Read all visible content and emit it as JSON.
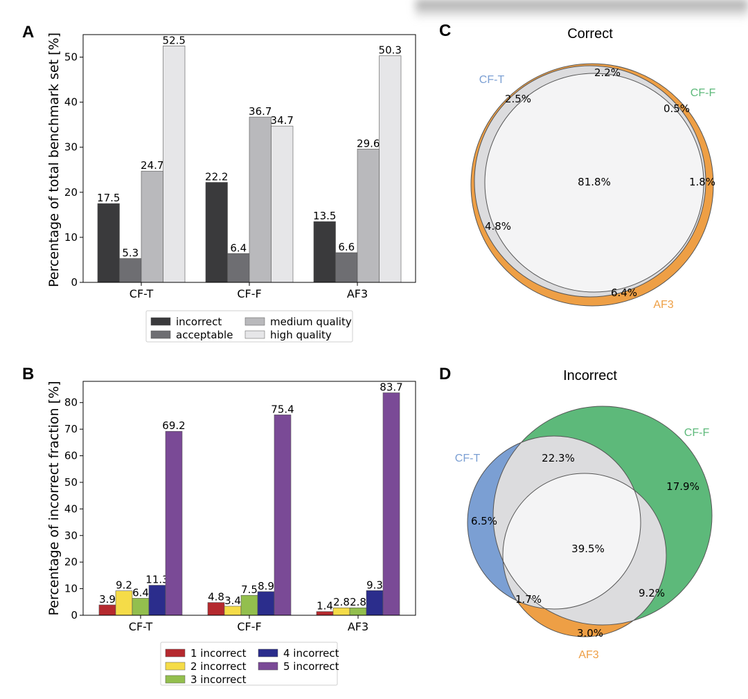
{
  "panels": {
    "A": "A",
    "B": "B",
    "C": "C",
    "D": "D"
  },
  "chart_data": [
    {
      "type": "bar",
      "panel": "A",
      "ylabel": "Percentage of total benchmark set [%]",
      "xlabel": "",
      "ylim": [
        0,
        55
      ],
      "yticks": [
        0,
        10,
        20,
        30,
        40,
        50
      ],
      "categories": [
        "CF-T",
        "CF-F",
        "AF3"
      ],
      "series": [
        {
          "name": "incorrect",
          "color": "#3a3a3c",
          "values": [
            17.5,
            22.2,
            13.5
          ]
        },
        {
          "name": "acceptable",
          "color": "#6e6e72",
          "values": [
            5.3,
            6.4,
            6.6
          ]
        },
        {
          "name": "medium quality",
          "color": "#b9b9bc",
          "values": [
            24.7,
            36.7,
            29.6
          ]
        },
        {
          "name": "high quality",
          "color": "#e6e6e8",
          "values": [
            52.5,
            34.7,
            50.3
          ]
        }
      ],
      "legend": {
        "placement": "bottom-center",
        "columns": 2
      }
    },
    {
      "type": "bar",
      "panel": "B",
      "ylabel": "Percentage of incorrect fraction [%]",
      "xlabel": "",
      "ylim": [
        0,
        88
      ],
      "yticks": [
        0,
        10,
        20,
        30,
        40,
        50,
        60,
        70,
        80
      ],
      "categories": [
        "CF-T",
        "CF-F",
        "AF3"
      ],
      "series": [
        {
          "name": "1 incorrect",
          "color": "#b5292e",
          "values": [
            3.9,
            4.8,
            1.4
          ]
        },
        {
          "name": "2 incorrect",
          "color": "#f5dc48",
          "values": [
            9.2,
            3.4,
            2.8
          ]
        },
        {
          "name": "3 incorrect",
          "color": "#93bf4e",
          "values": [
            6.4,
            7.5,
            2.8
          ]
        },
        {
          "name": "4 incorrect",
          "color": "#2b2d8c",
          "values": [
            11.3,
            8.9,
            9.3
          ]
        },
        {
          "name": "5 incorrect",
          "color": "#7a4a96",
          "values": [
            69.2,
            75.4,
            83.7
          ]
        }
      ],
      "legend": {
        "placement": "bottom-center",
        "columns": 2
      }
    }
  ],
  "venn": {
    "C": {
      "title": "Correct",
      "sets": [
        {
          "name": "CF-T",
          "color": "#7b9fd3"
        },
        {
          "name": "CF-F",
          "color": "#5db97a"
        },
        {
          "name": "AF3",
          "color": "#ee9f45"
        }
      ],
      "regions": {
        "all": "81.8%",
        "cft_cff": "2.2%",
        "cft_only": "2.5%",
        "cff_only": "0.5%",
        "cff_af3": "1.8%",
        "cft_af3": "4.8%",
        "af3_only": "6.4%"
      }
    },
    "D": {
      "title": "Incorrect",
      "sets": [
        {
          "name": "CF-T",
          "color": "#7b9fd3"
        },
        {
          "name": "CF-F",
          "color": "#5db97a"
        },
        {
          "name": "AF3",
          "color": "#ee9f45"
        }
      ],
      "regions": {
        "cft_cff": "22.3%",
        "cff_only": "17.9%",
        "cft_only": "6.5%",
        "all": "39.5%",
        "cft_af3": "1.7%",
        "cff_af3": "9.2%",
        "af3_only": "3.0%"
      }
    }
  }
}
